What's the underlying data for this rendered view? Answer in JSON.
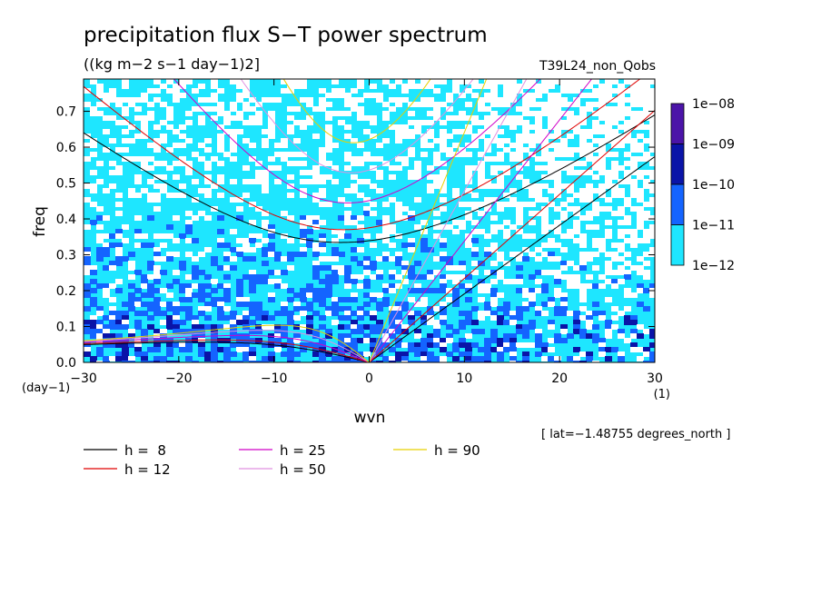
{
  "chart_data": {
    "type": "heatmap",
    "title": "precipitation flux S−T power spectrum",
    "units": "((kg m−2 s−1 day−1)2]",
    "run_label": "T39L24_non_Qobs",
    "xlabel": "wvn",
    "ylabel": "freq",
    "x_unit": "(1)",
    "y_unit": "(day−1)",
    "xlim": [
      -30,
      30
    ],
    "ylim": [
      0,
      0.79
    ],
    "x_ticks": [
      "−30",
      "−20",
      "−10",
      "0",
      "10",
      "20",
      "30"
    ],
    "y_ticks": [
      "0.0",
      "0.1",
      "0.2",
      "0.3",
      "0.4",
      "0.5",
      "0.6",
      "0.7"
    ],
    "y_tick_values": [
      0,
      0.1,
      0.2,
      0.3,
      0.4,
      0.5,
      0.6,
      0.7
    ],
    "grid": false,
    "note": "[ lat=−1.48755 degrees_north ]",
    "colorbar": {
      "labels": [
        "1e−08",
        "1e−09",
        "1e−10",
        "1e−11",
        "1e−12"
      ],
      "colors": [
        "#4b14a8",
        "#0a14a8",
        "#1464ff",
        "#1ee6ff"
      ]
    },
    "fill_colors": {
      "white": "#ffffff",
      "cyan": "#1ee6ff",
      "blue": "#1464ff",
      "navy": "#0a14a8"
    },
    "dispersion_curves": [
      {
        "name": "h =  8",
        "h": 8,
        "color": "#000000"
      },
      {
        "name": "h = 12",
        "h": 12,
        "color": "#e00000"
      },
      {
        "name": "h = 25",
        "h": 25,
        "color": "#d000c8"
      },
      {
        "name": "h = 50",
        "h": 50,
        "color": "#e090e0"
      },
      {
        "name": "h = 90",
        "h": 90,
        "color": "#e8d000"
      }
    ]
  }
}
